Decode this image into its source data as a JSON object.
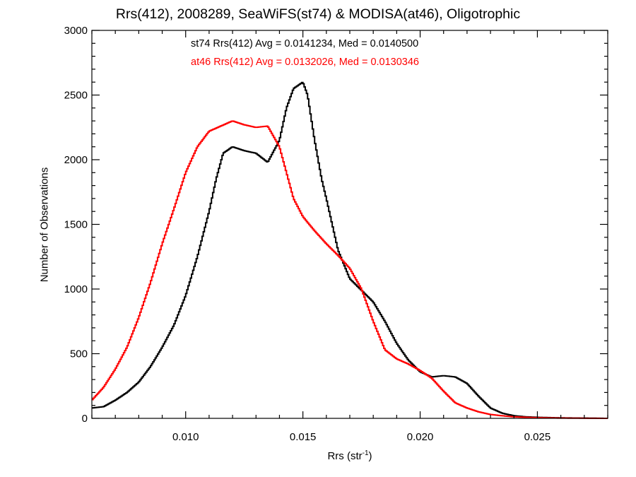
{
  "chart_data": {
    "type": "histogram",
    "title": "Rrs(412), 2008289, SeaWiFS(st74) & MODISA(at46), Oligotrophic",
    "xlabel_base": "Rrs (str",
    "xlabel_sup": "-1",
    "xlabel_close": ")",
    "ylabel": "Number of Observations",
    "xlim": [
      0.006,
      0.028
    ],
    "ylim": [
      0,
      3000
    ],
    "xticks": [
      0.01,
      0.015,
      0.02,
      0.025
    ],
    "xtick_labels": [
      "0.010",
      "0.015",
      "0.020",
      "0.025"
    ],
    "yticks": [
      0,
      500,
      1000,
      1500,
      2000,
      2500,
      3000
    ],
    "ytick_labels": [
      "0",
      "500",
      "1000",
      "1500",
      "2000",
      "2500",
      "3000"
    ],
    "annotations": [
      {
        "text": "st74 Rrs(412) Avg = 0.0141234, Med = 0.0140500",
        "color": "#000000"
      },
      {
        "text": "at46 Rrs(412) Avg = 0.0132026, Med = 0.0130346",
        "color": "#ff0000"
      }
    ],
    "series": [
      {
        "name": "st74",
        "color": "#000000",
        "x": [
          0.006,
          0.0065,
          0.007,
          0.0075,
          0.008,
          0.0085,
          0.009,
          0.0095,
          0.01,
          0.0105,
          0.011,
          0.0113,
          0.0116,
          0.012,
          0.0125,
          0.013,
          0.0135,
          0.014,
          0.0143,
          0.0146,
          0.015,
          0.0152,
          0.0155,
          0.0158,
          0.016,
          0.0165,
          0.017,
          0.0175,
          0.018,
          0.0185,
          0.019,
          0.0195,
          0.02,
          0.0205,
          0.021,
          0.0215,
          0.022,
          0.0225,
          0.023,
          0.0235,
          0.024,
          0.0245,
          0.025,
          0.026,
          0.027,
          0.028
        ],
        "y": [
          80,
          90,
          140,
          200,
          280,
          400,
          550,
          720,
          950,
          1250,
          1600,
          1850,
          2050,
          2100,
          2070,
          2050,
          1980,
          2150,
          2400,
          2550,
          2600,
          2500,
          2150,
          1850,
          1700,
          1300,
          1080,
          990,
          900,
          750,
          580,
          450,
          360,
          320,
          330,
          320,
          270,
          170,
          80,
          40,
          20,
          12,
          8,
          4,
          2,
          0
        ]
      },
      {
        "name": "at46",
        "color": "#ff0000",
        "x": [
          0.006,
          0.0065,
          0.007,
          0.0075,
          0.008,
          0.0085,
          0.009,
          0.0095,
          0.01,
          0.0105,
          0.011,
          0.0115,
          0.012,
          0.0125,
          0.013,
          0.0135,
          0.014,
          0.0143,
          0.0146,
          0.015,
          0.0155,
          0.016,
          0.0165,
          0.017,
          0.0175,
          0.018,
          0.0185,
          0.019,
          0.0195,
          0.02,
          0.0205,
          0.021,
          0.0215,
          0.022,
          0.0225,
          0.023,
          0.0235,
          0.024,
          0.0245,
          0.025,
          0.026,
          0.027,
          0.028
        ],
        "y": [
          140,
          240,
          380,
          550,
          780,
          1050,
          1350,
          1620,
          1900,
          2100,
          2220,
          2260,
          2300,
          2270,
          2250,
          2260,
          2100,
          1900,
          1700,
          1560,
          1450,
          1350,
          1260,
          1160,
          1000,
          750,
          530,
          460,
          420,
          370,
          310,
          210,
          120,
          80,
          50,
          30,
          20,
          12,
          8,
          5,
          2,
          1,
          0
        ]
      }
    ]
  }
}
